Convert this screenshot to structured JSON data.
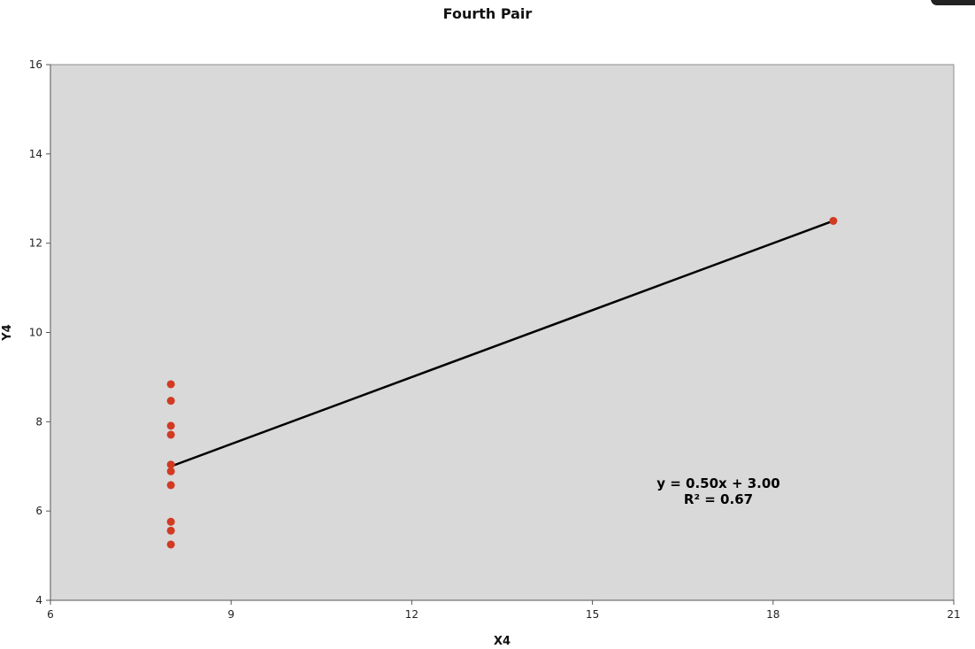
{
  "chart_data": {
    "type": "scatter",
    "title": "Fourth Pair",
    "xlabel": "X4",
    "ylabel": "Y4",
    "xlim": [
      6,
      21
    ],
    "ylim": [
      4,
      16
    ],
    "xticks": [
      6,
      9,
      12,
      15,
      18,
      21
    ],
    "yticks": [
      4,
      6,
      8,
      10,
      12,
      14,
      16
    ],
    "grid": false,
    "plot_background": "#d9d9d9",
    "series": [
      {
        "color": "#d23a22",
        "points": [
          {
            "x": 8,
            "y": 6.58
          },
          {
            "x": 8,
            "y": 5.76
          },
          {
            "x": 8,
            "y": 7.71
          },
          {
            "x": 8,
            "y": 8.84
          },
          {
            "x": 8,
            "y": 8.47
          },
          {
            "x": 8,
            "y": 7.04
          },
          {
            "x": 8,
            "y": 5.25
          },
          {
            "x": 19,
            "y": 12.5
          },
          {
            "x": 8,
            "y": 5.56
          },
          {
            "x": 8,
            "y": 7.91
          },
          {
            "x": 8,
            "y": 6.89
          }
        ]
      }
    ],
    "trendline": {
      "slope": 0.5,
      "intercept": 3.0,
      "x_range": [
        8,
        19
      ],
      "color": "#000000",
      "equation_label": "y = 0.50x + 3.00",
      "r2_label": "R² = 0.67"
    }
  }
}
